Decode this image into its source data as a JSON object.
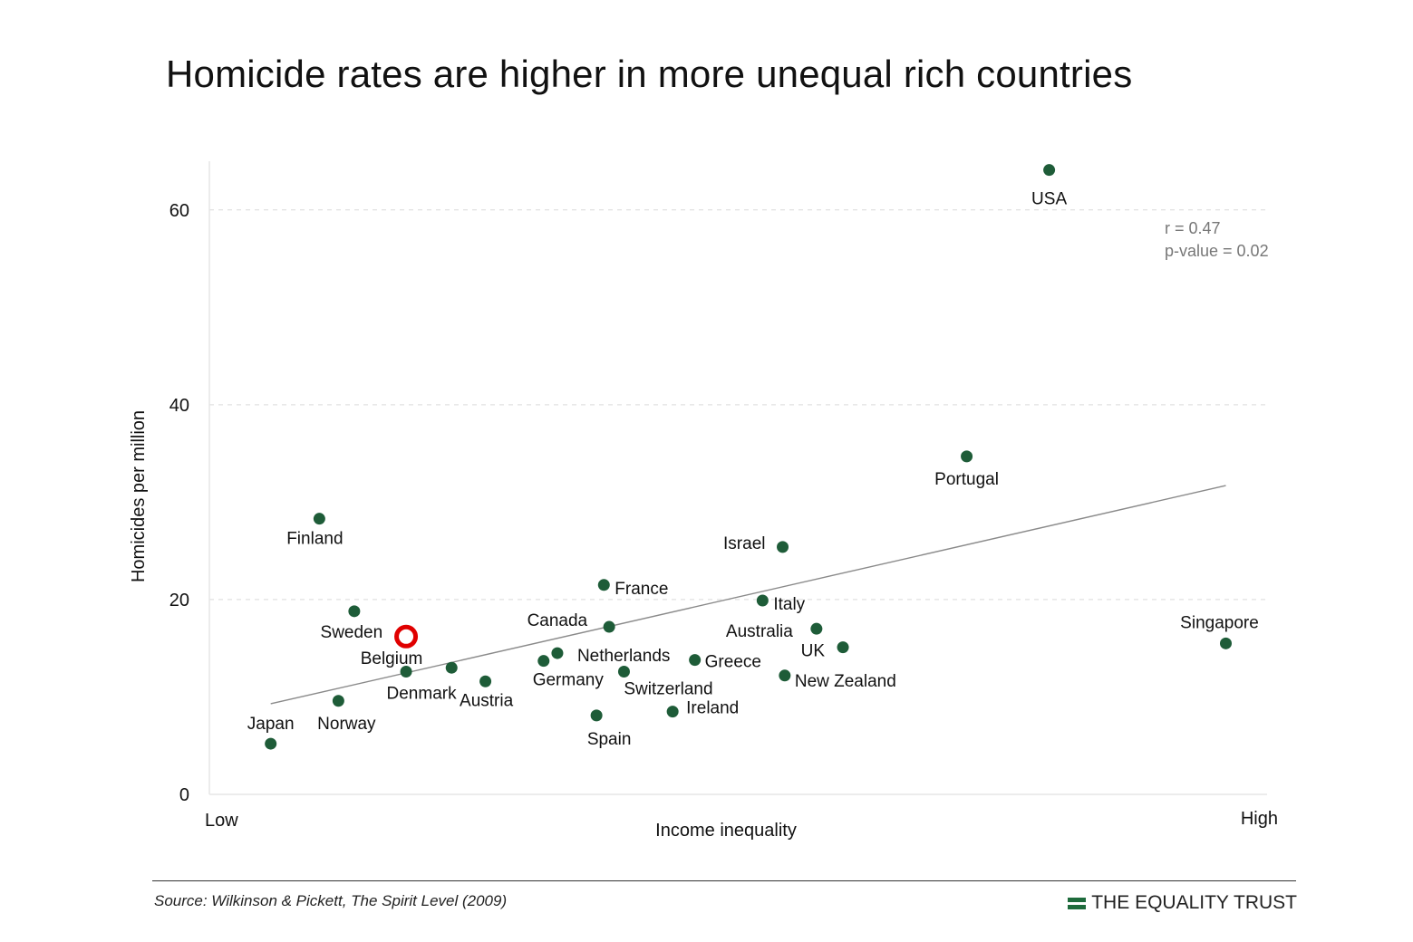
{
  "title": "Homicide rates are higher in more unequal rich countries",
  "source": "Source: Wilkinson & Pickett, The Spirit Level (2009)",
  "brand": {
    "name": "THE EQUALITY TRUST",
    "icon": "equality-trust-logo-icon",
    "color": "#1e6b3c"
  },
  "chart_data": {
    "type": "scatter",
    "xlabel": "Income inequality",
    "ylabel": "Homicides per million",
    "x_low_label": "Low",
    "x_high_label": "High",
    "ylim": [
      0,
      65
    ],
    "xlim": [
      0,
      100
    ],
    "yticks": [
      0,
      20,
      40,
      60
    ],
    "grid": true,
    "point_color": "#1e5c38",
    "highlight_color": "#e00000",
    "stats": [
      "r = 0.47",
      "p-value = 0.02"
    ],
    "trendline": {
      "x": [
        5.8,
        96.1
      ],
      "y": [
        9.3,
        31.7
      ]
    },
    "points": [
      {
        "label": "USA",
        "x": 79.4,
        "y": 64.1
      },
      {
        "label": "Portugal",
        "x": 71.6,
        "y": 34.7
      },
      {
        "label": "Finland",
        "x": 10.4,
        "y": 28.3
      },
      {
        "label": "Israel",
        "x": 54.2,
        "y": 25.4
      },
      {
        "label": "France",
        "x": 37.3,
        "y": 21.5
      },
      {
        "label": "Italy",
        "x": 52.3,
        "y": 19.9
      },
      {
        "label": "Sweden",
        "x": 13.7,
        "y": 18.8
      },
      {
        "label": "Canada",
        "x": 37.8,
        "y": 17.2
      },
      {
        "label": "Australia",
        "x": 57.4,
        "y": 17.0
      },
      {
        "label": "Singapore",
        "x": 96.1,
        "y": 15.5
      },
      {
        "label": "UK",
        "x": 59.9,
        "y": 15.1
      },
      {
        "label": "Netherlands",
        "x": 32.9,
        "y": 14.5
      },
      {
        "label": "Greece",
        "x": 45.9,
        "y": 13.8
      },
      {
        "label": "Germany",
        "x": 31.6,
        "y": 13.7
      },
      {
        "label": "Denmark",
        "x": 18.6,
        "y": 12.6
      },
      {
        "label": "Switzerland",
        "x": 39.2,
        "y": 12.6
      },
      {
        "label": "New Zealand",
        "x": 54.4,
        "y": 12.2
      },
      {
        "label": "Austria",
        "x": 26.1,
        "y": 11.6
      },
      {
        "label": "Norway",
        "x": 12.2,
        "y": 9.6
      },
      {
        "label": "Ireland",
        "x": 43.8,
        "y": 8.5
      },
      {
        "label": "Spain",
        "x": 36.6,
        "y": 8.1
      },
      {
        "label": "Japan",
        "x": 5.8,
        "y": 5.2
      }
    ],
    "unlabeled_points": [
      {
        "x": 22.9,
        "y": 13.0
      }
    ],
    "highlight": {
      "label": "Belgium",
      "x": 18.6,
      "y": 16.2
    }
  }
}
